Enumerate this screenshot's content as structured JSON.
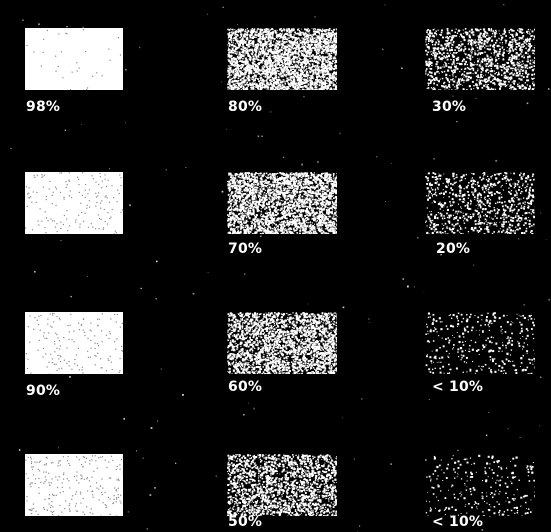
{
  "background_color": "#000000",
  "text_color": "#ffffff",
  "samples": [
    {
      "label": "98%",
      "coverage": 0.98
    },
    {
      "label": "80%",
      "coverage": 0.8
    },
    {
      "label": "30%",
      "coverage": 0.3
    },
    {
      "label": "",
      "coverage": 0.9
    },
    {
      "label": "70%",
      "coverage": 0.7
    },
    {
      "label": "20%",
      "coverage": 0.2
    },
    {
      "label": "90%",
      "coverage": 0.9
    },
    {
      "label": "60%",
      "coverage": 0.6
    },
    {
      "label": "< 10%",
      "coverage": 0.08
    },
    {
      "label": "",
      "coverage": 0.85
    },
    {
      "label": "50%",
      "coverage": 0.45
    },
    {
      "label": "< 10%",
      "coverage": 0.06
    }
  ]
}
